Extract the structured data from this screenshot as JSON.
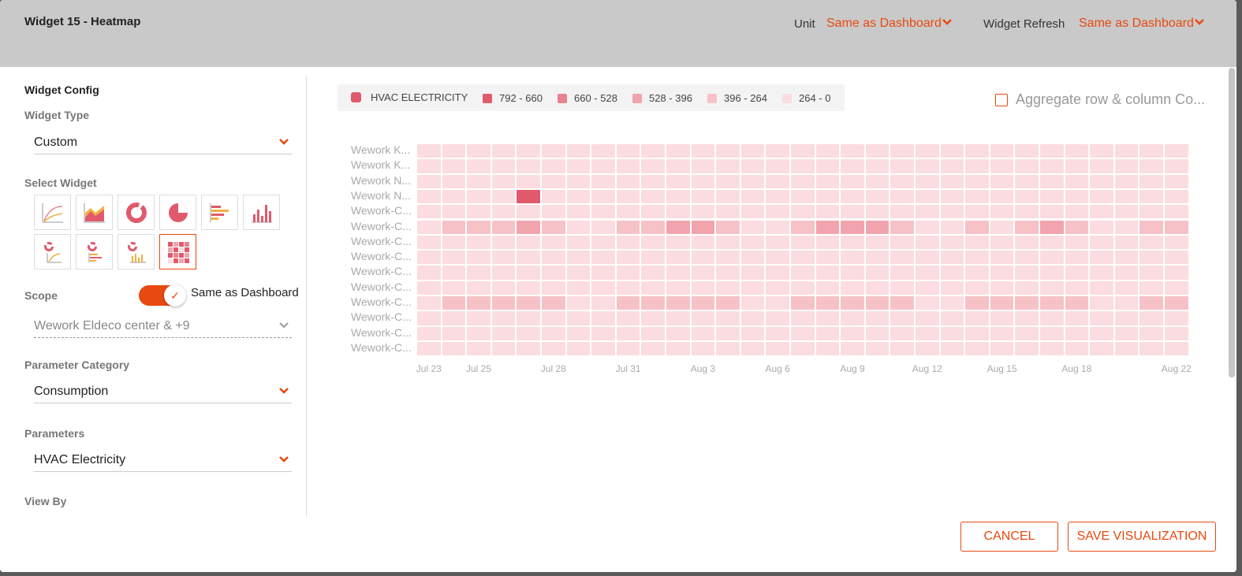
{
  "window": {
    "title": "Widget 15 - Heatmap"
  },
  "header": {
    "unit_label": "Unit",
    "unit_value": "Same as Dashboard",
    "refresh_label": "Widget Refresh",
    "refresh_value": "Same as Dashboard"
  },
  "config": {
    "title": "Widget Config",
    "widget_type_label": "Widget Type",
    "widget_type_value": "Custom",
    "select_widget_label": "Select Widget",
    "widget_icons": [
      "line-chart-icon",
      "area-chart-icon",
      "donut-chart-icon",
      "pie-chart-icon",
      "horizontal-bar-chart-icon",
      "vertical-bar-chart-icon",
      "donut-line-combo-icon",
      "donut-hbar-combo-icon",
      "donut-vbar-combo-icon",
      "heatmap-icon"
    ],
    "selected_widget": "heatmap-icon",
    "scope_label": "Scope",
    "scope_toggle_label": "Same as Dashboard",
    "scope_toggle_on": true,
    "scope_value": "Wework Eldeco center & +9",
    "param_category_label": "Parameter Category",
    "param_category_value": "Consumption",
    "parameters_label": "Parameters",
    "parameters_value": "HVAC Electricity",
    "view_by_label": "View By"
  },
  "legend": {
    "series": "HVAC ELECTRICITY",
    "series_color": "#e05a6c",
    "bins": [
      {
        "label": "792 - 660",
        "color": "#e05a6c"
      },
      {
        "label": "660 - 528",
        "color": "#e8828f"
      },
      {
        "label": "528 - 396",
        "color": "#f1a4ad"
      },
      {
        "label": "396 - 264",
        "color": "#f6c1c7"
      },
      {
        "label": "264 - 0",
        "color": "#fbdce0"
      }
    ]
  },
  "aggregate_label": "Aggregate row & column Co...",
  "aggregate_checked": false,
  "chart_data": {
    "type": "heatmap",
    "rows": [
      "Wework K...",
      "Wework K...",
      "Wework N...",
      "Wework N...",
      "Wework-C...",
      "Wework-C...",
      "Wework-C...",
      "Wework-C...",
      "Wework-C...",
      "Wework-C...",
      "Wework-C...",
      "Wework-C...",
      "Wework-C...",
      "Wework-C..."
    ],
    "x_tick_labels": [
      "Jul 23",
      "Jul 25",
      "Jul 28",
      "Jul 31",
      "Aug 3",
      "Aug 6",
      "Aug 9",
      "Aug 12",
      "Aug 15",
      "Aug 18",
      "Aug 22"
    ],
    "columns": 31,
    "bins": [
      "264 - 0",
      "396 - 264",
      "528 - 396",
      "660 - 528",
      "792 - 660"
    ],
    "cell_bins": [
      [
        0,
        0,
        0,
        0,
        0,
        0,
        0,
        0,
        0,
        0,
        0,
        0,
        0,
        0,
        0,
        0,
        0,
        0,
        0,
        0,
        0,
        0,
        0,
        0,
        0,
        0,
        0,
        0,
        0,
        0,
        0
      ],
      [
        0,
        0,
        0,
        0,
        0,
        0,
        0,
        0,
        0,
        0,
        0,
        0,
        0,
        0,
        0,
        0,
        0,
        0,
        0,
        0,
        0,
        0,
        0,
        0,
        0,
        0,
        0,
        0,
        0,
        0,
        0
      ],
      [
        0,
        0,
        0,
        0,
        0,
        0,
        0,
        0,
        0,
        0,
        0,
        0,
        0,
        0,
        0,
        0,
        0,
        0,
        0,
        0,
        0,
        0,
        0,
        0,
        0,
        0,
        0,
        0,
        0,
        0,
        0
      ],
      [
        0,
        0,
        0,
        0,
        4,
        0,
        0,
        0,
        0,
        0,
        0,
        0,
        0,
        0,
        0,
        0,
        0,
        0,
        0,
        0,
        0,
        0,
        0,
        0,
        0,
        0,
        0,
        0,
        0,
        0,
        0
      ],
      [
        0,
        0,
        0,
        0,
        0,
        0,
        0,
        0,
        0,
        0,
        0,
        0,
        0,
        0,
        0,
        0,
        0,
        0,
        0,
        0,
        0,
        0,
        0,
        0,
        0,
        0,
        0,
        0,
        0,
        0,
        0
      ],
      [
        0,
        1,
        1,
        1,
        2,
        1,
        0,
        0,
        1,
        1,
        2,
        2,
        1,
        0,
        0,
        1,
        2,
        2,
        2,
        1,
        0,
        0,
        1,
        0,
        1,
        2,
        1,
        0,
        0,
        1,
        1
      ],
      [
        0,
        0,
        0,
        0,
        0,
        0,
        0,
        0,
        0,
        0,
        0,
        0,
        0,
        0,
        0,
        0,
        0,
        0,
        0,
        0,
        0,
        0,
        0,
        0,
        0,
        0,
        0,
        0,
        0,
        0,
        0
      ],
      [
        0,
        0,
        0,
        0,
        0,
        0,
        0,
        0,
        0,
        0,
        0,
        0,
        0,
        0,
        0,
        0,
        0,
        0,
        0,
        0,
        0,
        0,
        0,
        0,
        0,
        0,
        0,
        0,
        0,
        0,
        0
      ],
      [
        0,
        0,
        0,
        0,
        0,
        0,
        0,
        0,
        0,
        0,
        0,
        0,
        0,
        0,
        0,
        0,
        0,
        0,
        0,
        0,
        0,
        0,
        0,
        0,
        0,
        0,
        0,
        0,
        0,
        0,
        0
      ],
      [
        0,
        0,
        0,
        0,
        0,
        0,
        0,
        0,
        0,
        0,
        0,
        0,
        0,
        0,
        0,
        0,
        0,
        0,
        0,
        0,
        0,
        0,
        0,
        0,
        0,
        0,
        0,
        0,
        0,
        0,
        0
      ],
      [
        0,
        1,
        1,
        1,
        1,
        1,
        0,
        0,
        1,
        1,
        1,
        1,
        1,
        0,
        0,
        1,
        1,
        1,
        1,
        1,
        0,
        0,
        1,
        1,
        1,
        1,
        1,
        0,
        0,
        1,
        1
      ],
      [
        0,
        0,
        0,
        0,
        0,
        0,
        0,
        0,
        0,
        0,
        0,
        0,
        0,
        0,
        0,
        0,
        0,
        0,
        0,
        0,
        0,
        0,
        0,
        0,
        0,
        0,
        0,
        0,
        0,
        0,
        0
      ],
      [
        0,
        0,
        0,
        0,
        0,
        0,
        0,
        0,
        0,
        0,
        0,
        0,
        0,
        0,
        0,
        0,
        0,
        0,
        0,
        0,
        0,
        0,
        0,
        0,
        0,
        0,
        0,
        0,
        0,
        0,
        0
      ],
      [
        0,
        0,
        0,
        0,
        0,
        0,
        0,
        0,
        0,
        0,
        0,
        0,
        0,
        0,
        0,
        0,
        0,
        0,
        0,
        0,
        0,
        0,
        0,
        0,
        0,
        0,
        0,
        0,
        0,
        0,
        0
      ]
    ]
  },
  "footer": {
    "cancel_label": "CANCEL",
    "save_label": "SAVE VISUALIZATION"
  },
  "colors": {
    "accent": "#e8490f",
    "header_bg": "#c9c9c9"
  }
}
